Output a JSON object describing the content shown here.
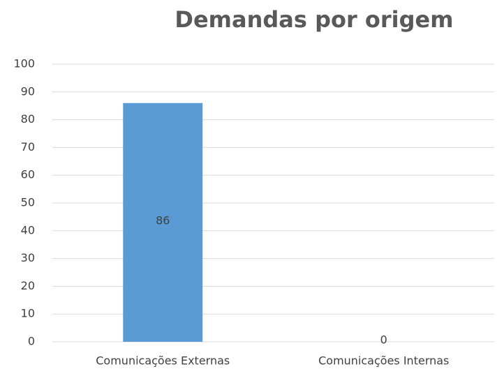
{
  "chart_data": {
    "type": "bar",
    "title": "Demandas por origem",
    "categories": [
      "Comunicações Externas",
      "Comunicações Internas"
    ],
    "values": [
      86,
      0
    ],
    "color": "#5b9bd5",
    "ylim": [
      0,
      100
    ],
    "yticks": [
      0,
      10,
      20,
      30,
      40,
      50,
      60,
      70,
      80,
      90,
      100
    ],
    "grid": true
  }
}
